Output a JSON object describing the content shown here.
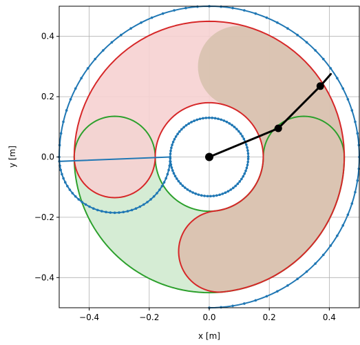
{
  "chart_data": {
    "type": "line",
    "title": "",
    "xlabel": "x [m]",
    "ylabel": "y [m]",
    "xlim": [
      -0.5,
      0.5
    ],
    "ylim": [
      -0.5,
      0.5
    ],
    "grid": true,
    "aspect": "equal",
    "x_ticks": [
      -0.4,
      -0.2,
      0.0,
      0.2,
      0.4
    ],
    "x_tick_labels": [
      "−0.4",
      "−0.2",
      "0.0",
      "0.2",
      "0.4"
    ],
    "y_ticks": [
      -0.4,
      -0.2,
      0.0,
      0.2,
      0.4
    ],
    "y_tick_labels": [
      "−0.4",
      "−0.2",
      "0.0",
      "0.2",
      "0.4"
    ],
    "colors": {
      "boundary": "#1f77b4",
      "green": "#2ca02c",
      "red": "#d62728",
      "green_fill": "#d5ecd4",
      "red_fill": "#f6d2d2",
      "overlap_fill": "#d6c1ad",
      "arm": "#000000",
      "grid": "#b0b0b0"
    },
    "regions": {
      "green_workspace": {
        "center_radius_inner": 0.18,
        "center_radius_outer": 0.45,
        "cap_radius": 0.135,
        "angle_range_deg": [
          180,
          360
        ]
      },
      "red_workspace": {
        "center_radius_inner": 0.18,
        "center_radius_outer": 0.45,
        "cap_radius": 0.135,
        "angle_range_deg": [
          -84,
          180
        ]
      }
    },
    "boundary": {
      "offset": 0.05,
      "angle_range_deg": [
        -90,
        180
      ],
      "marker_count": 130
    },
    "arm": {
      "points": [
        [
          0.0,
          0.0
        ],
        [
          0.23,
          0.095
        ],
        [
          0.37,
          0.235
        ],
        [
          0.405,
          0.275
        ]
      ],
      "joint_indices": [
        0,
        1,
        2
      ]
    }
  }
}
